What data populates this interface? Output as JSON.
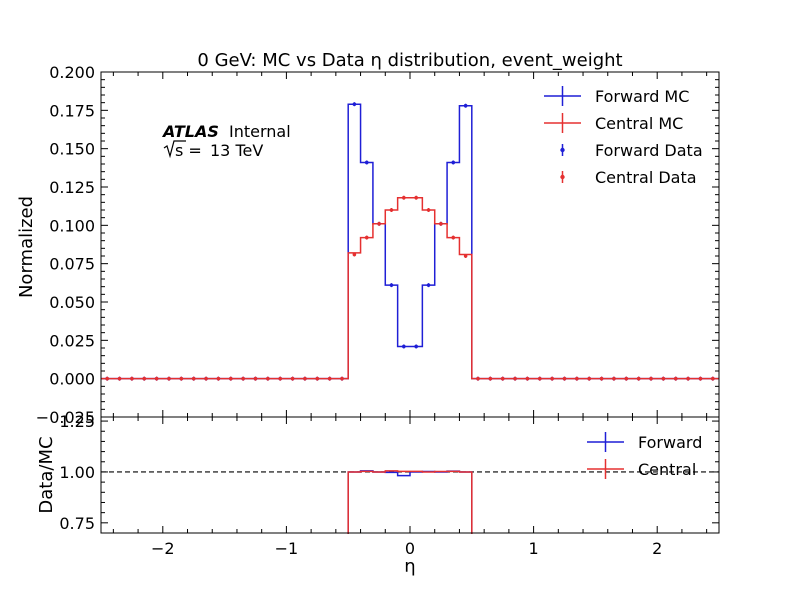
{
  "chart_data": [
    {
      "type": "line",
      "panel": "main",
      "title": "0 GeV: MC vs Data η distribution, event_weight",
      "xlabel": "",
      "ylabel": "Normalized",
      "xlim": [
        -2.5,
        2.5
      ],
      "ylim": [
        -0.025,
        0.2
      ],
      "yticks": [
        "−0.025",
        "0.000",
        "0.025",
        "0.050",
        "0.075",
        "0.100",
        "0.125",
        "0.150",
        "0.175",
        "0.200"
      ],
      "yticks_values": [
        -0.025,
        0.0,
        0.025,
        0.05,
        0.075,
        0.1,
        0.125,
        0.15,
        0.175,
        0.2
      ],
      "bin_edges": [
        -2.5,
        -2.4,
        -2.3,
        -2.2,
        -2.1,
        -2.0,
        -1.9,
        -1.8,
        -1.7,
        -1.6,
        -1.5,
        -1.4,
        -1.3,
        -1.2,
        -1.1,
        -1.0,
        -0.9,
        -0.8,
        -0.7,
        -0.6,
        -0.5,
        -0.4,
        -0.3,
        -0.2,
        -0.1,
        0.0,
        0.1,
        0.2,
        0.3,
        0.4,
        0.5,
        0.6,
        0.7,
        0.8,
        0.9,
        1.0,
        1.1,
        1.2,
        1.3,
        1.4,
        1.5,
        1.6,
        1.7,
        1.8,
        1.9,
        2.0,
        2.1,
        2.2,
        2.3,
        2.4,
        2.5
      ],
      "series": [
        {
          "name": "Forward MC",
          "style": "step",
          "color": "#1f1fd6",
          "values": [
            0,
            0,
            0,
            0,
            0,
            0,
            0,
            0,
            0,
            0,
            0,
            0,
            0,
            0,
            0,
            0,
            0,
            0,
            0,
            0,
            0.179,
            0.141,
            0.101,
            0.061,
            0.021,
            0.021,
            0.061,
            0.101,
            0.141,
            0.178,
            0,
            0,
            0,
            0,
            0,
            0,
            0,
            0,
            0,
            0,
            0,
            0,
            0,
            0,
            0,
            0,
            0,
            0,
            0,
            0
          ]
        },
        {
          "name": "Central MC",
          "style": "step",
          "color": "#e53030",
          "values": [
            0,
            0,
            0,
            0,
            0,
            0,
            0,
            0,
            0,
            0,
            0,
            0,
            0,
            0,
            0,
            0,
            0,
            0,
            0,
            0,
            0.082,
            0.092,
            0.101,
            0.11,
            0.118,
            0.118,
            0.11,
            0.101,
            0.092,
            0.081,
            0,
            0,
            0,
            0,
            0,
            0,
            0,
            0,
            0,
            0,
            0,
            0,
            0,
            0,
            0,
            0,
            0,
            0,
            0,
            0
          ]
        },
        {
          "name": "Forward Data",
          "style": "points",
          "color": "#1f1fd6",
          "values": [
            0,
            0,
            0,
            0,
            0,
            0,
            0,
            0,
            0,
            0,
            0,
            0,
            0,
            0,
            0,
            0,
            0,
            0,
            0,
            0,
            0.179,
            0.141,
            0.101,
            0.061,
            0.021,
            0.021,
            0.061,
            0.101,
            0.141,
            0.178,
            0,
            0,
            0,
            0,
            0,
            0,
            0,
            0,
            0,
            0,
            0,
            0,
            0,
            0,
            0,
            0,
            0,
            0,
            0,
            0
          ]
        },
        {
          "name": "Central Data",
          "style": "points",
          "color": "#e53030",
          "values": [
            0,
            0,
            0,
            0,
            0,
            0,
            0,
            0,
            0,
            0,
            0,
            0,
            0,
            0,
            0,
            0,
            0,
            0,
            0,
            0,
            0.081,
            0.092,
            0.101,
            0.11,
            0.118,
            0.118,
            0.11,
            0.101,
            0.092,
            0.08,
            0,
            0,
            0,
            0,
            0,
            0,
            0,
            0,
            0,
            0,
            0,
            0,
            0,
            0,
            0,
            0,
            0,
            0,
            0,
            0
          ]
        }
      ],
      "legend": "top-right",
      "annotation": {
        "experiment": "ATLAS",
        "status": "Internal",
        "energy_prefix": "s = ",
        "energy": "13 TeV"
      }
    },
    {
      "type": "line",
      "panel": "ratio",
      "xlabel": "η",
      "ylabel": "Data/MC",
      "xlim": [
        -2.5,
        2.5
      ],
      "ylim": [
        0.7,
        1.27
      ],
      "xticks": [
        "−2",
        "−1",
        "0",
        "1",
        "2"
      ],
      "xticks_values": [
        -2,
        -1,
        0,
        1,
        2
      ],
      "yticks": [
        "0.75",
        "1.00",
        "1.25"
      ],
      "yticks_values": [
        0.75,
        1.0,
        1.25
      ],
      "reference_line": 1.0,
      "ratio_range": [
        -0.5,
        0.5
      ],
      "series": [
        {
          "name": "Forward",
          "style": "step",
          "color": "#1f1fd6",
          "values": [
            1.0,
            1.005,
            1.0,
            0.998,
            0.982,
            1.0,
            1.002,
            1.0,
            1.004,
            1.0
          ]
        },
        {
          "name": "Central",
          "style": "step",
          "color": "#e53030",
          "values": [
            1.0,
            1.003,
            1.0,
            1.005,
            1.003,
            1.003,
            1.0,
            1.002,
            1.003,
            1.0
          ]
        }
      ],
      "legend": "top-right"
    }
  ]
}
